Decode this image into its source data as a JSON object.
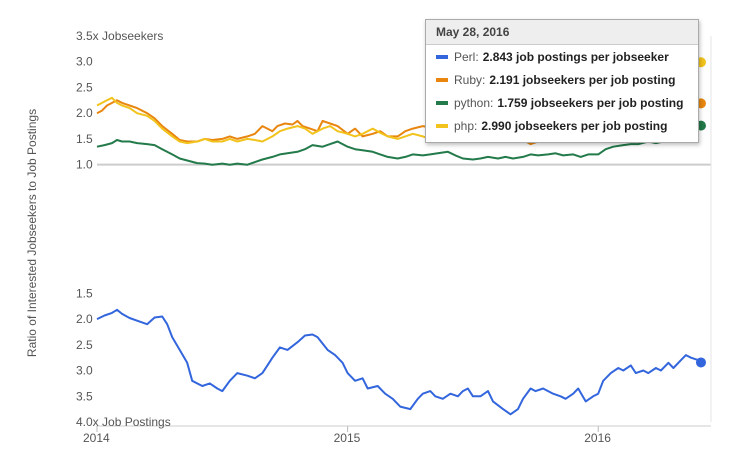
{
  "chart_data": {
    "type": "line",
    "ylabel": "Ratio of Interested Jobseekers to Job Postings",
    "y_ticks": [
      {
        "value": 3.5,
        "label": "3.5x Jobseekers"
      },
      {
        "value": 3.0,
        "label": "3.0"
      },
      {
        "value": 2.5,
        "label": "2.5"
      },
      {
        "value": 2.0,
        "label": "2.0"
      },
      {
        "value": 1.5,
        "label": "1.5"
      },
      {
        "value": 1.0,
        "label": "1.0"
      },
      {
        "value": -1.5,
        "label": "1.5"
      },
      {
        "value": -2.0,
        "label": "2.0"
      },
      {
        "value": -2.5,
        "label": "2.5"
      },
      {
        "value": -3.0,
        "label": "3.0"
      },
      {
        "value": -3.5,
        "label": "3.5"
      },
      {
        "value": -4.0,
        "label": "4.0x Job Postings"
      }
    ],
    "x_ticks": [
      {
        "value": 2014,
        "label": "2014"
      },
      {
        "value": 2015,
        "label": "2015"
      },
      {
        "value": 2016,
        "label": "2016"
      }
    ],
    "xlim": [
      2014,
      2016.45
    ],
    "ylim": [
      -4.0,
      3.5
    ],
    "grid": false,
    "series": [
      {
        "name": "Perl",
        "color": "#3366dd",
        "x": [
          2014.0,
          2014.03,
          2014.06,
          2014.08,
          2014.1,
          2014.13,
          2014.17,
          2014.2,
          2014.23,
          2014.26,
          2014.28,
          2014.3,
          2014.33,
          2014.36,
          2014.38,
          2014.42,
          2014.45,
          2014.48,
          2014.5,
          2014.53,
          2014.56,
          2014.6,
          2014.63,
          2014.66,
          2014.68,
          2014.7,
          2014.73,
          2014.76,
          2014.8,
          2014.83,
          2014.86,
          2014.88,
          2014.92,
          2014.95,
          2014.98,
          2015.0,
          2015.03,
          2015.06,
          2015.08,
          2015.12,
          2015.15,
          2015.18,
          2015.21,
          2015.25,
          2015.28,
          2015.3,
          2015.33,
          2015.35,
          2015.38,
          2015.41,
          2015.44,
          2015.46,
          2015.48,
          2015.5,
          2015.53,
          2015.56,
          2015.58,
          2015.62,
          2015.65,
          2015.68,
          2015.7,
          2015.73,
          2015.75,
          2015.78,
          2015.8,
          2015.82,
          2015.85,
          2015.87,
          2015.9,
          2015.92,
          2015.95,
          2015.98,
          2016.0,
          2016.02,
          2016.05,
          2016.08,
          2016.1,
          2016.13,
          2016.15,
          2016.18,
          2016.2,
          2016.23,
          2016.25,
          2016.28,
          2016.3,
          2016.33,
          2016.35,
          2016.37,
          2016.4,
          2016.41
        ],
        "values": [
          -2.0,
          -1.93,
          -1.88,
          -1.82,
          -1.9,
          -1.98,
          -2.05,
          -2.1,
          -1.97,
          -1.95,
          -2.1,
          -2.35,
          -2.6,
          -2.85,
          -3.2,
          -3.3,
          -3.25,
          -3.35,
          -3.4,
          -3.2,
          -3.05,
          -3.1,
          -3.15,
          -3.05,
          -2.9,
          -2.75,
          -2.55,
          -2.6,
          -2.45,
          -2.32,
          -2.3,
          -2.35,
          -2.6,
          -2.7,
          -2.85,
          -3.05,
          -3.2,
          -3.15,
          -3.35,
          -3.3,
          -3.45,
          -3.55,
          -3.7,
          -3.75,
          -3.55,
          -3.45,
          -3.4,
          -3.5,
          -3.55,
          -3.45,
          -3.5,
          -3.4,
          -3.35,
          -3.5,
          -3.5,
          -3.4,
          -3.6,
          -3.75,
          -3.85,
          -3.75,
          -3.55,
          -3.35,
          -3.4,
          -3.35,
          -3.4,
          -3.45,
          -3.5,
          -3.55,
          -3.45,
          -3.35,
          -3.6,
          -3.5,
          -3.45,
          -3.2,
          -3.05,
          -2.95,
          -3.0,
          -2.9,
          -3.05,
          -3.0,
          -3.05,
          -2.95,
          -3.0,
          -2.85,
          -2.95,
          -2.8,
          -2.7,
          -2.75,
          -2.8,
          -2.843
        ]
      },
      {
        "name": "Ruby",
        "color": "#e8860f",
        "x": [
          2014.0,
          2014.02,
          2014.04,
          2014.06,
          2014.08,
          2014.1,
          2014.13,
          2014.16,
          2014.2,
          2014.23,
          2014.26,
          2014.3,
          2014.33,
          2014.36,
          2014.4,
          2014.43,
          2014.46,
          2014.5,
          2014.53,
          2014.56,
          2014.6,
          2014.63,
          2014.66,
          2014.68,
          2014.7,
          2014.72,
          2014.75,
          2014.78,
          2014.8,
          2014.82,
          2014.85,
          2014.88,
          2014.9,
          2014.93,
          2014.96,
          2015.0,
          2015.03,
          2015.06,
          2015.1,
          2015.13,
          2015.16,
          2015.2,
          2015.23,
          2015.26,
          2015.3,
          2015.33,
          2015.36,
          2015.4,
          2015.43,
          2015.46,
          2015.5,
          2015.53,
          2015.56,
          2015.6,
          2015.63,
          2015.66,
          2015.7,
          2015.73,
          2015.76,
          2015.8,
          2015.83,
          2015.86,
          2015.9,
          2015.93,
          2015.96,
          2016.0,
          2016.03,
          2016.06,
          2016.1,
          2016.13,
          2016.16,
          2016.2,
          2016.23,
          2016.26,
          2016.3,
          2016.33,
          2016.35,
          2016.37,
          2016.38,
          2016.41
        ],
        "values": [
          2.0,
          2.05,
          2.15,
          2.2,
          2.25,
          2.2,
          2.15,
          2.1,
          2.0,
          1.9,
          1.75,
          1.6,
          1.48,
          1.45,
          1.45,
          1.5,
          1.48,
          1.5,
          1.55,
          1.5,
          1.55,
          1.6,
          1.75,
          1.7,
          1.65,
          1.75,
          1.8,
          1.78,
          1.85,
          1.75,
          1.7,
          1.65,
          1.85,
          1.8,
          1.75,
          1.6,
          1.7,
          1.55,
          1.6,
          1.65,
          1.55,
          1.55,
          1.65,
          1.7,
          1.75,
          1.72,
          1.65,
          1.7,
          1.6,
          1.55,
          1.65,
          1.7,
          1.72,
          1.7,
          1.6,
          1.55,
          1.48,
          1.4,
          1.45,
          1.5,
          1.55,
          1.6,
          1.65,
          1.7,
          1.75,
          1.8,
          1.85,
          1.82,
          1.85,
          1.9,
          1.92,
          1.95,
          1.9,
          1.92,
          1.95,
          1.9,
          1.98,
          1.95,
          2.15,
          2.191
        ]
      },
      {
        "name": "python",
        "color": "#237a4a",
        "x": [
          2014.0,
          2014.03,
          2014.06,
          2014.08,
          2014.1,
          2014.13,
          2014.16,
          2014.2,
          2014.23,
          2014.26,
          2014.3,
          2014.33,
          2014.36,
          2014.4,
          2014.43,
          2014.46,
          2014.5,
          2014.53,
          2014.56,
          2014.6,
          2014.63,
          2014.66,
          2014.7,
          2014.73,
          2014.76,
          2014.8,
          2014.83,
          2014.86,
          2014.9,
          2014.93,
          2014.96,
          2015.0,
          2015.03,
          2015.06,
          2015.1,
          2015.13,
          2015.16,
          2015.2,
          2015.23,
          2015.26,
          2015.3,
          2015.33,
          2015.36,
          2015.4,
          2015.43,
          2015.46,
          2015.5,
          2015.53,
          2015.56,
          2015.6,
          2015.63,
          2015.66,
          2015.7,
          2015.73,
          2015.76,
          2015.8,
          2015.83,
          2015.86,
          2015.9,
          2015.93,
          2015.96,
          2016.0,
          2016.03,
          2016.06,
          2016.1,
          2016.13,
          2016.16,
          2016.2,
          2016.23,
          2016.26,
          2016.3,
          2016.33,
          2016.36,
          2016.38,
          2016.41
        ],
        "values": [
          1.35,
          1.38,
          1.42,
          1.48,
          1.45,
          1.45,
          1.42,
          1.4,
          1.38,
          1.3,
          1.2,
          1.12,
          1.08,
          1.03,
          1.02,
          1.0,
          1.02,
          1.0,
          1.02,
          1.0,
          1.05,
          1.1,
          1.15,
          1.2,
          1.22,
          1.25,
          1.3,
          1.38,
          1.35,
          1.4,
          1.45,
          1.35,
          1.3,
          1.28,
          1.25,
          1.2,
          1.15,
          1.12,
          1.15,
          1.2,
          1.18,
          1.2,
          1.22,
          1.25,
          1.18,
          1.12,
          1.1,
          1.12,
          1.15,
          1.12,
          1.15,
          1.12,
          1.15,
          1.2,
          1.18,
          1.2,
          1.22,
          1.18,
          1.2,
          1.15,
          1.2,
          1.2,
          1.3,
          1.35,
          1.38,
          1.4,
          1.4,
          1.45,
          1.42,
          1.45,
          1.5,
          1.55,
          1.6,
          1.75,
          1.759
        ]
      },
      {
        "name": "php",
        "color": "#f2c31c",
        "x": [
          2014.0,
          2014.02,
          2014.04,
          2014.06,
          2014.08,
          2014.1,
          2014.13,
          2014.16,
          2014.2,
          2014.23,
          2014.26,
          2014.3,
          2014.33,
          2014.36,
          2014.4,
          2014.43,
          2014.46,
          2014.5,
          2014.53,
          2014.56,
          2014.6,
          2014.63,
          2014.66,
          2014.7,
          2014.73,
          2014.76,
          2014.8,
          2014.83,
          2014.86,
          2014.9,
          2014.93,
          2014.96,
          2015.0,
          2015.03,
          2015.06,
          2015.1,
          2015.13,
          2015.16,
          2015.2,
          2015.23,
          2015.26,
          2015.3,
          2015.33,
          2015.36,
          2015.4,
          2015.43,
          2015.46,
          2015.5,
          2015.53,
          2015.56,
          2015.6,
          2015.63,
          2015.66,
          2015.7,
          2015.73,
          2015.76,
          2015.8,
          2015.83,
          2015.86,
          2015.9,
          2015.93,
          2015.96,
          2016.0,
          2016.03,
          2016.06,
          2016.1,
          2016.13,
          2016.16,
          2016.2,
          2016.23,
          2016.26,
          2016.3,
          2016.33,
          2016.36,
          2016.38,
          2016.41
        ],
        "values": [
          2.15,
          2.2,
          2.25,
          2.3,
          2.2,
          2.15,
          2.1,
          2.0,
          1.95,
          1.85,
          1.7,
          1.55,
          1.45,
          1.42,
          1.45,
          1.5,
          1.45,
          1.45,
          1.5,
          1.45,
          1.5,
          1.48,
          1.45,
          1.55,
          1.65,
          1.7,
          1.75,
          1.7,
          1.6,
          1.7,
          1.75,
          1.65,
          1.6,
          1.55,
          1.6,
          1.7,
          1.62,
          1.55,
          1.5,
          1.55,
          1.6,
          1.55,
          1.5,
          1.6,
          1.55,
          1.5,
          1.55,
          1.6,
          1.65,
          1.7,
          1.75,
          1.8,
          1.75,
          1.8,
          1.85,
          1.8,
          1.85,
          1.88,
          1.85,
          1.9,
          1.95,
          2.0,
          2.05,
          2.15,
          2.25,
          2.35,
          2.5,
          2.65,
          2.8,
          2.9,
          2.95,
          2.98,
          3.0,
          2.99,
          2.99,
          2.99
        ]
      }
    ]
  },
  "tooltip": {
    "date": "May 28, 2016",
    "rows": [
      {
        "name": "Perl",
        "value": "2.843 job postings per jobseeker",
        "color": "#3366dd"
      },
      {
        "name": "Ruby",
        "value": "2.191 jobseekers per job posting",
        "color": "#e8860f"
      },
      {
        "name": "python",
        "value": "1.759 jobseekers per job posting",
        "color": "#237a4a"
      },
      {
        "name": "php",
        "value": "2.990 jobseekers per job posting",
        "color": "#f2c31c"
      }
    ]
  }
}
